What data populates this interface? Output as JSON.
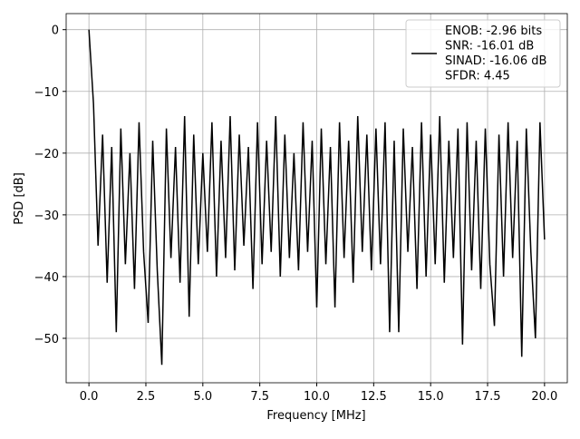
{
  "chart_data": {
    "type": "line",
    "xlabel": "Frequency [MHz]",
    "ylabel": "PSD [dB]",
    "x": [
      0,
      0.2,
      0.4,
      0.6,
      0.8,
      1,
      1.2,
      1.4,
      1.6,
      1.8,
      2,
      2.2,
      2.4,
      2.6,
      2.8,
      3,
      3.2,
      3.4,
      3.6,
      3.8,
      4,
      4.2,
      4.4,
      4.6,
      4.8,
      5,
      5.2,
      5.4,
      5.6,
      5.8,
      6,
      6.2,
      6.4,
      6.6,
      6.8,
      7,
      7.2,
      7.4,
      7.6,
      7.8,
      8,
      8.2,
      8.4,
      8.6,
      8.8,
      9,
      9.2,
      9.4,
      9.6,
      9.8,
      10,
      10.2,
      10.4,
      10.6,
      10.8,
      11,
      11.2,
      11.4,
      11.6,
      11.8,
      12,
      12.2,
      12.4,
      12.6,
      12.8,
      13,
      13.2,
      13.4,
      13.6,
      13.8,
      14,
      14.2,
      14.4,
      14.6,
      14.8,
      15,
      15.2,
      15.4,
      15.6,
      15.8,
      16,
      16.2,
      16.4,
      16.6,
      16.8,
      17,
      17.2,
      17.4,
      17.6,
      17.8,
      18,
      18.2,
      18.4,
      18.6,
      18.8,
      19,
      19.2,
      19.4,
      19.6,
      19.8,
      20
    ],
    "series": [
      {
        "name": "ENOB: -2.96 bits\nSNR: -16.01 dB\nSINAD: -16.06 dB\nSFDR: 4.45",
        "color": "#000000",
        "values": [
          0,
          -12,
          -35,
          -17,
          -41,
          -19,
          -49,
          -16,
          -38,
          -20,
          -42,
          -15,
          -36,
          -47.5,
          -18,
          -39,
          -54.3,
          -16,
          -37,
          -19,
          -41,
          -14,
          -46.5,
          -17,
          -38,
          -20,
          -36,
          -15,
          -40,
          -18,
          -37,
          -14,
          -39,
          -17,
          -35,
          -19,
          -42,
          -15,
          -38,
          -18,
          -36,
          -14,
          -40,
          -17,
          -37,
          -20,
          -39,
          -15,
          -36,
          -18,
          -45,
          -16,
          -38,
          -19,
          -45,
          -15,
          -37,
          -18,
          -41,
          -14,
          -36,
          -17,
          -39,
          -16,
          -38,
          -15,
          -49,
          -18,
          -49,
          -16,
          -36,
          -19,
          -42,
          -15,
          -40,
          -17,
          -38,
          -14,
          -41,
          -18,
          -37,
          -16,
          -51,
          -15,
          -39,
          -18,
          -42,
          -16,
          -38,
          -48,
          -17,
          -40,
          -15,
          -37,
          -18,
          -53,
          -16,
          -36,
          -50,
          -15,
          -34
        ]
      }
    ],
    "xlim": [
      -1,
      21
    ],
    "ylim": [
      -57.2,
      2.6
    ],
    "xticks": [
      {
        "value": 0,
        "label": "0.0"
      },
      {
        "value": 2.5,
        "label": "2.5"
      },
      {
        "value": 5,
        "label": "5.0"
      },
      {
        "value": 7.5,
        "label": "7.5"
      },
      {
        "value": 10,
        "label": "10.0"
      },
      {
        "value": 12.5,
        "label": "12.5"
      },
      {
        "value": 15,
        "label": "15.0"
      },
      {
        "value": 17.5,
        "label": "17.5"
      },
      {
        "value": 20,
        "label": "20.0"
      }
    ],
    "yticks": [
      {
        "value": -50,
        "label": "−50"
      },
      {
        "value": -40,
        "label": "−40"
      },
      {
        "value": -30,
        "label": "−30"
      },
      {
        "value": -20,
        "label": "−20"
      },
      {
        "value": -10,
        "label": "−10"
      },
      0
    ],
    "grid": true,
    "legend": "upper right"
  }
}
